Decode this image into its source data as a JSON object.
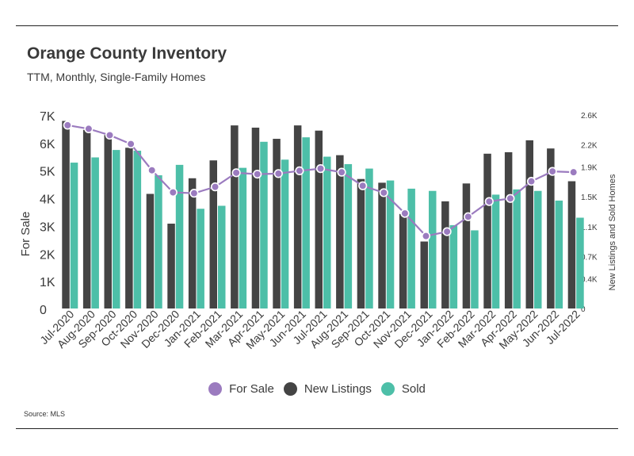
{
  "chart_data": {
    "type": "bar",
    "title": "Orange County Inventory",
    "subtitle": "TTM, Monthly, Single-Family Homes",
    "source": "Source:  MLS",
    "ylabel": "For Sale",
    "y2label": "New Listings and Sold Homes",
    "ylim": [
      0,
      7000
    ],
    "y2lim": [
      0,
      2600
    ],
    "yticks": [
      {
        "value": 0,
        "label": "0"
      },
      {
        "value": 1000,
        "label": "1K"
      },
      {
        "value": 2000,
        "label": "2K"
      },
      {
        "value": 3000,
        "label": "3K"
      },
      {
        "value": 4000,
        "label": "4K"
      },
      {
        "value": 5000,
        "label": "5K"
      },
      {
        "value": 6000,
        "label": "6K"
      },
      {
        "value": 7000,
        "label": "7K"
      }
    ],
    "y2ticks": [
      {
        "value": 0,
        "label": "0"
      },
      {
        "value": 400,
        "label": "0.4K"
      },
      {
        "value": 700,
        "label": "0.7K"
      },
      {
        "value": 1100,
        "label": "1.1K"
      },
      {
        "value": 1500,
        "label": "1.5K"
      },
      {
        "value": 1900,
        "label": "1.9K"
      },
      {
        "value": 2200,
        "label": "2.2K"
      },
      {
        "value": 2600,
        "label": "2.6K"
      }
    ],
    "categories": [
      "Jul-2020",
      "Aug-2020",
      "Sep-2020",
      "Oct-2020",
      "Nov-2020",
      "Dec-2020",
      "Jan-2021",
      "Feb-2021",
      "Mar-2021",
      "Apr-2021",
      "May-2021",
      "Jun-2021",
      "Jul-2021",
      "Aug-2021",
      "Sep-2021",
      "Oct-2021",
      "Nov-2021",
      "Dec-2021",
      "Jan-2022",
      "Feb-2022",
      "Mar-2022",
      "Apr-2022",
      "May-2022",
      "Jun-2022",
      "Jul-2022"
    ],
    "series": [
      {
        "name": "For Sale",
        "type": "line",
        "axis": "left",
        "color": "#9b7bbf",
        "values": [
          6630,
          6500,
          6270,
          5950,
          5000,
          4200,
          4170,
          4400,
          4910,
          4860,
          4880,
          4980,
          5060,
          4930,
          4440,
          4190,
          3440,
          2620,
          2780,
          3320,
          3870,
          3980,
          4600,
          4960,
          4930
        ]
      },
      {
        "name": "New Listings",
        "type": "bar",
        "axis": "right",
        "color": "#444444",
        "values": [
          2520,
          2400,
          2330,
          2160,
          1540,
          1140,
          1750,
          1990,
          2460,
          2430,
          2280,
          2460,
          2390,
          2060,
          1740,
          1690,
          1270,
          900,
          1440,
          1680,
          2080,
          2100,
          2260,
          2150,
          1710
        ]
      },
      {
        "name": "Sold",
        "type": "bar",
        "axis": "right",
        "color": "#4dbfa8",
        "values": [
          1960,
          2030,
          2130,
          2120,
          1790,
          1930,
          1340,
          1380,
          1890,
          2240,
          2000,
          2300,
          2040,
          1940,
          1880,
          1720,
          1610,
          1580,
          1120,
          1050,
          1530,
          1600,
          1580,
          1450,
          1220
        ]
      }
    ],
    "legend": [
      {
        "name": "For Sale",
        "color": "#9b7bbf"
      },
      {
        "name": "New Listings",
        "color": "#444444"
      },
      {
        "name": "Sold",
        "color": "#4dbfa8"
      }
    ]
  }
}
